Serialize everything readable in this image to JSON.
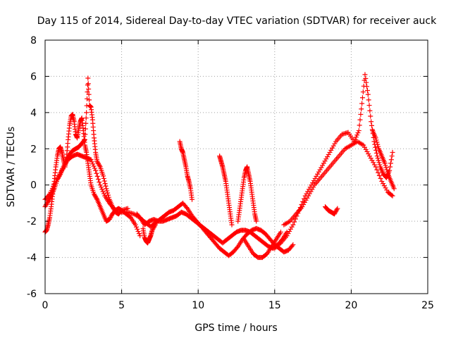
{
  "chart_data": {
    "type": "scatter",
    "title": "Day 115 of 2014, Sidereal Day-to-day VTEC variation (SDTVAR) for receiver auck",
    "xlabel": "GPS time / hours",
    "ylabel": "SDTVAR / TECUs",
    "xlim": [
      0,
      25
    ],
    "ylim": [
      -6,
      8
    ],
    "xticks": [
      0,
      5,
      10,
      15,
      20,
      25
    ],
    "xtick_labels": [
      "0",
      "5",
      "10",
      "15",
      "20",
      "25"
    ],
    "yticks": [
      -6,
      -4,
      -2,
      0,
      2,
      4,
      6,
      8
    ],
    "ytick_labels": [
      "-6",
      "-4",
      "-2",
      "0",
      "2",
      "4",
      "6",
      "8"
    ],
    "grid": true,
    "marker": "+",
    "color": "#ff0000",
    "series": [
      {
        "name": "trace-1",
        "x": [
          0.0,
          0.1,
          0.2,
          0.3,
          0.4,
          0.5,
          0.6,
          0.7,
          0.8,
          0.9,
          1.0,
          1.1,
          1.2,
          1.3,
          1.4,
          1.5,
          1.6,
          1.7,
          1.8,
          1.9,
          2.0,
          2.1,
          2.2,
          2.3,
          2.4,
          2.5,
          2.6,
          2.7,
          2.8,
          2.9,
          3.0,
          3.2,
          3.4,
          3.6,
          3.8,
          4.0,
          4.2,
          4.4,
          4.6,
          4.8,
          5.0,
          5.3,
          5.6,
          5.9,
          6.2
        ],
        "y": [
          -2.6,
          -2.5,
          -2.2,
          -1.8,
          -1.2,
          -0.5,
          0.2,
          1.0,
          1.6,
          2.0,
          2.1,
          1.8,
          1.4,
          1.0,
          1.5,
          2.5,
          3.3,
          3.8,
          3.9,
          3.5,
          2.8,
          2.6,
          3.1,
          3.5,
          3.7,
          3.0,
          2.2,
          1.8,
          1.2,
          0.6,
          0.0,
          -0.5,
          -0.8,
          -1.2,
          -1.6,
          -2.0,
          -1.9,
          -1.6,
          -1.4,
          -1.3,
          -1.4,
          -1.6,
          -1.8,
          -2.2,
          -2.8
        ]
      },
      {
        "name": "trace-2",
        "x": [
          0.0,
          0.2,
          0.4,
          0.6,
          0.8,
          1.0,
          1.2,
          1.4,
          1.6,
          1.8,
          2.0,
          2.2,
          2.4,
          2.6,
          2.7,
          2.8,
          2.9,
          3.0,
          3.1,
          3.2,
          3.3,
          3.4,
          3.6,
          3.8,
          4.0,
          4.2,
          4.4,
          4.6,
          4.8,
          5.0,
          5.4
        ],
        "y": [
          -1.2,
          -0.9,
          -0.6,
          -0.2,
          0.3,
          0.6,
          1.0,
          1.4,
          1.7,
          1.9,
          2.0,
          2.1,
          2.3,
          2.5,
          4.0,
          5.9,
          4.4,
          4.3,
          3.6,
          2.6,
          1.8,
          1.3,
          1.0,
          0.5,
          -0.2,
          -0.8,
          -1.2,
          -1.5,
          -1.6,
          -1.4,
          -1.3
        ]
      },
      {
        "name": "trace-3",
        "x": [
          0.0,
          0.3,
          0.6,
          0.9,
          1.2,
          1.5,
          1.8,
          2.1,
          2.4,
          2.7,
          3.0,
          3.3,
          3.6,
          3.9,
          4.2,
          4.5
        ],
        "y": [
          -0.8,
          -0.5,
          0.0,
          0.5,
          1.0,
          1.4,
          1.6,
          1.7,
          1.6,
          1.5,
          1.4,
          0.8,
          0.0,
          -0.6,
          -1.0,
          -1.3
        ]
      },
      {
        "name": "trace-4",
        "x": [
          5.0,
          5.4,
          5.8,
          6.2,
          6.5,
          6.8,
          7.1,
          7.4,
          7.7,
          8.0,
          8.3,
          8.6,
          8.9,
          9.2,
          9.5,
          9.8,
          10.1,
          10.4,
          10.7,
          11.0,
          11.3,
          11.6,
          11.9,
          12.2,
          12.5,
          12.8,
          13.1,
          13.4,
          13.7,
          14.0,
          14.3,
          14.6,
          14.9,
          15.2,
          15.5,
          15.8
        ],
        "y": [
          -1.5,
          -1.5,
          -1.6,
          -1.8,
          -2.2,
          -2.0,
          -1.9,
          -2.0,
          -2.0,
          -1.9,
          -1.8,
          -1.7,
          -1.5,
          -1.6,
          -1.8,
          -2.0,
          -2.2,
          -2.4,
          -2.6,
          -2.8,
          -3.0,
          -3.2,
          -3.0,
          -2.8,
          -2.6,
          -2.5,
          -2.5,
          -2.6,
          -2.8,
          -3.0,
          -3.2,
          -3.4,
          -3.5,
          -3.3,
          -3.0,
          -2.6
        ]
      },
      {
        "name": "trace-5",
        "x": [
          6.0,
          6.3,
          6.6,
          6.9,
          7.2,
          7.5,
          7.8,
          8.1,
          8.4,
          8.7,
          9.0,
          9.3,
          9.6,
          9.9,
          10.2,
          10.5,
          10.8,
          11.1,
          11.4,
          11.7,
          12.0,
          12.3,
          12.6,
          12.9,
          13.2,
          13.5,
          13.8,
          14.1,
          14.4,
          14.7,
          15.0,
          15.3,
          15.6,
          15.9,
          16.2
        ],
        "y": [
          -1.6,
          -1.9,
          -2.1,
          -2.3,
          -2.1,
          -1.9,
          -1.7,
          -1.5,
          -1.4,
          -1.2,
          -1.0,
          -1.3,
          -1.7,
          -2.0,
          -2.3,
          -2.6,
          -2.9,
          -3.2,
          -3.5,
          -3.7,
          -3.9,
          -3.7,
          -3.4,
          -3.0,
          -2.7,
          -2.5,
          -2.4,
          -2.5,
          -2.7,
          -3.0,
          -3.3,
          -3.5,
          -3.7,
          -3.6,
          -3.3
        ]
      },
      {
        "name": "trace-6",
        "x": [
          6.4,
          6.5,
          6.6,
          6.7,
          6.8,
          6.9,
          7.0,
          7.2
        ],
        "y": [
          -2.4,
          -2.9,
          -3.1,
          -3.2,
          -3.0,
          -2.8,
          -2.5,
          -2.2
        ]
      },
      {
        "name": "trace-7",
        "x": [
          8.8,
          8.9,
          9.0,
          9.1,
          9.2,
          9.3,
          9.4,
          9.5,
          9.6
        ],
        "y": [
          2.4,
          2.0,
          1.8,
          1.4,
          1.0,
          0.5,
          0.2,
          -0.2,
          -0.8
        ]
      },
      {
        "name": "trace-8",
        "x": [
          11.4,
          11.5,
          11.6,
          11.7,
          11.8,
          11.9,
          12.0,
          12.1,
          12.2
        ],
        "y": [
          1.6,
          1.3,
          1.0,
          0.6,
          0.2,
          -0.4,
          -1.0,
          -1.6,
          -2.2
        ]
      },
      {
        "name": "trace-9",
        "x": [
          12.6,
          12.7,
          12.8,
          12.9,
          13.0,
          13.1,
          13.2,
          13.3,
          13.4,
          13.5,
          13.6,
          13.7,
          13.8
        ],
        "y": [
          -2.0,
          -1.4,
          -0.8,
          -0.2,
          0.4,
          0.8,
          1.0,
          0.6,
          0.2,
          -0.4,
          -1.0,
          -1.6,
          -2.0
        ]
      },
      {
        "name": "trace-10",
        "x": [
          13.0,
          13.3,
          13.6,
          13.9,
          14.2,
          14.5,
          14.8,
          15.1,
          15.4
        ],
        "y": [
          -3.0,
          -3.4,
          -3.8,
          -4.0,
          -4.0,
          -3.8,
          -3.4,
          -3.0,
          -2.6
        ]
      },
      {
        "name": "trace-11",
        "x": [
          15.0,
          15.4,
          15.8,
          16.2,
          16.6,
          17.0,
          17.4,
          17.8,
          18.2,
          18.6,
          19.0,
          19.4,
          19.8,
          20.2,
          20.5,
          20.7,
          20.9,
          21.1,
          21.3,
          21.5,
          21.7,
          21.9,
          22.1,
          22.3,
          22.5,
          22.7
        ],
        "y": [
          -3.5,
          -3.2,
          -2.8,
          -2.2,
          -1.4,
          -0.6,
          0.0,
          0.6,
          1.2,
          1.8,
          2.4,
          2.8,
          2.9,
          2.4,
          3.0,
          4.5,
          6.1,
          5.0,
          3.5,
          2.4,
          1.6,
          1.0,
          0.6,
          0.4,
          0.8,
          1.8
        ]
      },
      {
        "name": "trace-12",
        "x": [
          15.6,
          16.0,
          16.4,
          16.8,
          17.2,
          17.6,
          18.0,
          18.4,
          18.8,
          19.2,
          19.6,
          20.0,
          20.4,
          20.8,
          21.2,
          21.6,
          22.0,
          22.4,
          22.7
        ],
        "y": [
          -2.2,
          -2.0,
          -1.6,
          -1.2,
          -0.6,
          0.0,
          0.4,
          0.8,
          1.2,
          1.6,
          2.0,
          2.2,
          2.4,
          2.2,
          1.6,
          1.0,
          0.2,
          -0.4,
          -0.6
        ]
      },
      {
        "name": "trace-13",
        "x": [
          18.3,
          18.5,
          18.7,
          18.9,
          19.1
        ],
        "y": [
          -1.2,
          -1.4,
          -1.5,
          -1.6,
          -1.3
        ]
      },
      {
        "name": "trace-14",
        "x": [
          21.4,
          21.6,
          21.8,
          22.0,
          22.2,
          22.4,
          22.6,
          22.8
        ],
        "y": [
          3.0,
          2.6,
          2.0,
          1.6,
          1.2,
          0.6,
          0.2,
          -0.2
        ]
      }
    ]
  }
}
